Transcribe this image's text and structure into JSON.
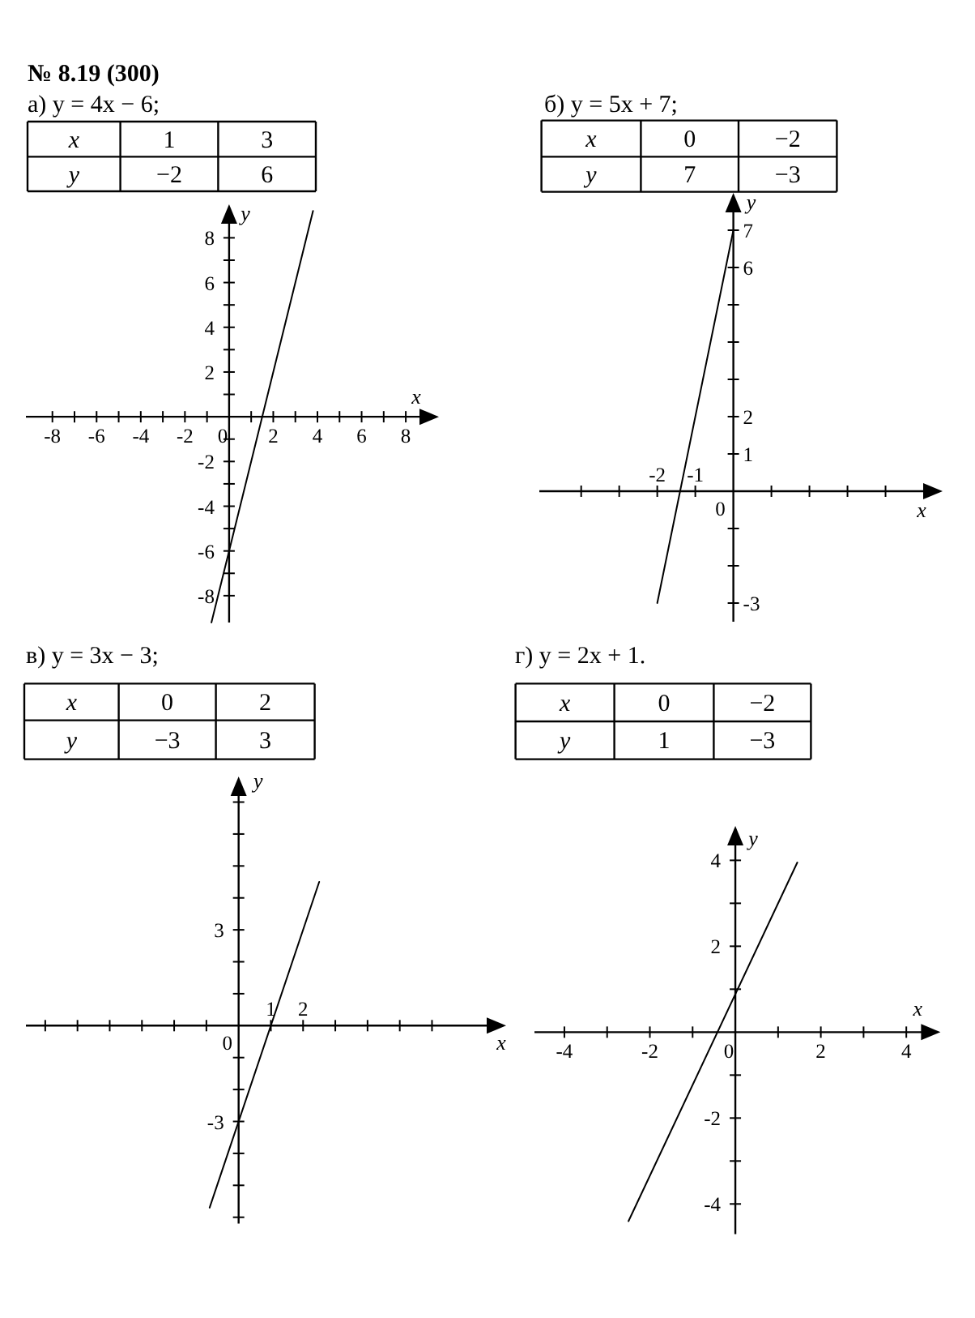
{
  "chart_data": [
    {
      "type": "other",
      "title": "№ 8.19 (300)",
      "subtitle": "а) y = 4x − 6;",
      "xlabel": "x",
      "ylabel": "y",
      "categories": [
        "1",
        "3"
      ],
      "values": [
        -2,
        6
      ],
      "data_labels": true
    },
    {
      "type": "line",
      "xlabel": "x",
      "ylabel": "y",
      "xlim": [
        -9.2,
        9.5
      ],
      "ylim": [
        -9.2,
        9.5
      ],
      "xticks": [
        -8,
        {
          "value": -7,
          "label": null
        },
        -6,
        {
          "value": -5,
          "label": null
        },
        -4,
        {
          "value": -3,
          "label": null
        },
        -2,
        {
          "value": -1,
          "label": null
        },
        0,
        {
          "value": 1,
          "label": null
        },
        2,
        {
          "value": 3,
          "label": null
        },
        4,
        {
          "value": 5,
          "label": null
        },
        6,
        {
          "value": 7,
          "label": null
        },
        8
      ],
      "yticks": [
        -8,
        {
          "value": -7,
          "label": null
        },
        -6,
        {
          "value": -5,
          "label": null
        },
        -4,
        {
          "value": -3,
          "label": null
        },
        -2,
        {
          "value": -1,
          "label": null
        },
        {
          "value": 1,
          "label": null
        },
        2,
        {
          "value": 3,
          "label": null
        },
        4,
        {
          "value": 5,
          "label": null
        },
        6,
        {
          "value": 7,
          "label": null
        },
        8
      ],
      "series": [
        {
          "color": "#000000",
          "x": [
            -0.8,
            3.8
          ],
          "values": [
            -9.2,
            9.2
          ]
        }
      ]
    },
    {
      "type": "other",
      "title": "б) y = 5x + 7;",
      "xlabel": "x",
      "ylabel": "y",
      "categories": [
        "0",
        "−2"
      ],
      "values": [
        7,
        -3
      ],
      "data_labels": true
    },
    {
      "type": "line",
      "xlabel": "x",
      "ylabel": "y",
      "xlim": [
        -5.1,
        5.5
      ],
      "ylim": [
        -3.5,
        8
      ],
      "xticks": [
        {
          "value": -4,
          "label": null
        },
        {
          "value": -3,
          "label": null
        },
        -2,
        -1,
        {
          "value": 1,
          "label": null
        },
        {
          "value": 2,
          "label": null
        },
        {
          "value": 3,
          "label": null
        },
        {
          "value": 4,
          "label": null
        }
      ],
      "yticks": [
        -3,
        {
          "value": -2,
          "label": null
        },
        {
          "value": -1,
          "label": null
        },
        1,
        2,
        {
          "value": 3,
          "label": null
        },
        {
          "value": 4,
          "label": null
        },
        {
          "value": 5,
          "label": null
        },
        6,
        7
      ],
      "annotations": [
        "0"
      ],
      "series": [
        {
          "color": "#000000",
          "x": [
            -2,
            0
          ],
          "values": [
            -3,
            7
          ]
        }
      ]
    },
    {
      "type": "other",
      "title": "в) y = 3x − 3;",
      "xlabel": "x",
      "ylabel": "y",
      "categories": [
        "0",
        "2"
      ],
      "values": [
        -3,
        3
      ],
      "data_labels": true
    },
    {
      "type": "line",
      "xlabel": "x",
      "ylabel": "y",
      "xlim": [
        -6.6,
        8.3
      ],
      "ylim": [
        -6.2,
        7.8
      ],
      "xticks": [
        {
          "value": -6,
          "label": null
        },
        {
          "value": -5,
          "label": null
        },
        {
          "value": -4,
          "label": null
        },
        {
          "value": -3,
          "label": null
        },
        {
          "value": -2,
          "label": null
        },
        {
          "value": -1,
          "label": null
        },
        1,
        2,
        {
          "value": 3,
          "label": null
        },
        {
          "value": 4,
          "label": null
        },
        {
          "value": 5,
          "label": null
        },
        {
          "value": 6,
          "label": null
        }
      ],
      "yticks": [
        {
          "value": -6,
          "label": null
        },
        {
          "value": -5,
          "label": null
        },
        {
          "value": -4,
          "label": null
        },
        -3,
        {
          "value": -2,
          "label": null
        },
        {
          "value": -1,
          "label": null
        },
        {
          "value": 1,
          "label": null
        },
        {
          "value": 2,
          "label": null
        },
        3,
        {
          "value": 4,
          "label": null
        },
        {
          "value": 5,
          "label": null
        },
        {
          "value": 6,
          "label": null
        },
        {
          "value": 7,
          "label": null
        }
      ],
      "annotations": [
        "0"
      ],
      "series": [
        {
          "color": "#000000",
          "x": [
            -0.9,
            2.5
          ],
          "values": [
            -5.7,
            4.5
          ]
        }
      ]
    },
    {
      "type": "other",
      "title": "г) y = 2x + 1.",
      "xlabel": "x",
      "ylabel": "y",
      "categories": [
        "0",
        "−2"
      ],
      "values": [
        1,
        -3
      ],
      "data_labels": true
    },
    {
      "type": "line",
      "xlabel": "x",
      "ylabel": "y",
      "xlim": [
        -4.7,
        4.8
      ],
      "ylim": [
        -4.7,
        4.8
      ],
      "xticks": [
        -4,
        {
          "value": -3,
          "label": null
        },
        -2,
        {
          "value": -1,
          "label": null
        },
        0,
        {
          "value": 1,
          "label": null
        },
        2,
        {
          "value": 3,
          "label": null
        },
        4
      ],
      "yticks": [
        -4,
        {
          "value": -3,
          "label": null
        },
        -2,
        {
          "value": -1,
          "label": null
        },
        {
          "value": 1,
          "label": null
        },
        2,
        {
          "value": 3,
          "label": null
        },
        4
      ],
      "series": [
        {
          "color": "#000000",
          "x": [
            -2.5,
            1.45
          ],
          "values": [
            -4.4,
            3.95
          ]
        }
      ]
    }
  ]
}
